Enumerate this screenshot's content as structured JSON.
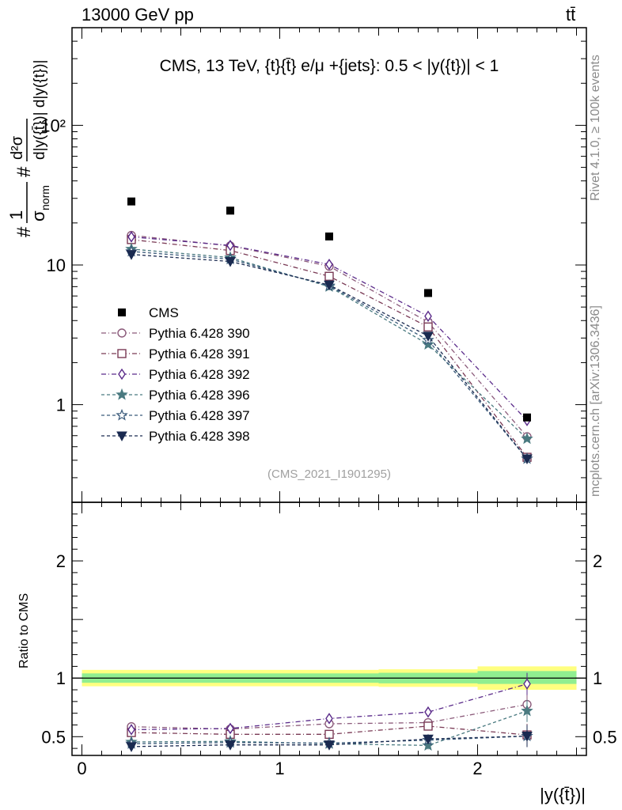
{
  "header": {
    "energy_label": "13000 GeV pp",
    "process_label": "tt̄"
  },
  "side_labels": {
    "rivet": "Rivet 4.1.0, ≥ 100k events",
    "mcplots": "mcplots.cern.ch [arXiv:1306.3436]"
  },
  "main_panel": {
    "title": "CMS, 13 TeV, {t}{t̄} e/μ +{jets}: 0.5 < |y({t})| < 1",
    "ylabel_parts": [
      "#",
      "1",
      "σ",
      "norm",
      "#",
      "d²σ",
      "d|y({t̄})| d|y({t})|"
    ],
    "analysis_tag": "(CMS_2021_I1901295)"
  },
  "ratio_panel": {
    "ylabel": "Ratio to CMS",
    "xlabel": "|y({t̄})|"
  },
  "colors": {
    "data": "#000000",
    "band_inner": "#90ee90",
    "band_outer": "#ffff80",
    "s390": "#8b5a7a",
    "s391": "#7a3a55",
    "s392": "#5a2a8a",
    "s396": "#4a7a80",
    "s397": "#3a5a7a",
    "s398": "#1a2a50"
  },
  "chart_data": {
    "type": "scatter",
    "x": [
      0.25,
      0.75,
      1.25,
      1.75,
      2.25
    ],
    "x_bin_edges": [
      0,
      0.5,
      1.0,
      1.5,
      2.0,
      2.5
    ],
    "xlim": [
      -0.05,
      2.55
    ],
    "main": {
      "yscale": "log",
      "ylim": [
        0.2,
        500
      ],
      "ytick_labels": [
        "1",
        "10",
        "10²"
      ],
      "ytick_values": [
        1,
        10,
        100
      ]
    },
    "ratio": {
      "ylim": [
        0.34,
        2.5
      ],
      "ytick_labels": [
        "0.5",
        "1",
        "2"
      ],
      "ytick_values": [
        0.5,
        1,
        2
      ],
      "xtick_labels": [
        "0",
        "1",
        "2"
      ],
      "xtick_values": [
        0,
        1,
        2
      ],
      "band_inner": [
        [
          0.96,
          1.04
        ],
        [
          0.96,
          1.04
        ],
        [
          0.96,
          1.04
        ],
        [
          0.955,
          1.045
        ],
        [
          0.95,
          1.06
        ]
      ],
      "band_outer": [
        [
          0.93,
          1.07
        ],
        [
          0.93,
          1.07
        ],
        [
          0.93,
          1.07
        ],
        [
          0.925,
          1.075
        ],
        [
          0.9,
          1.1
        ]
      ]
    },
    "data_series": {
      "name": "CMS",
      "values": [
        28.5,
        24.5,
        16.0,
        6.3,
        0.81
      ]
    },
    "series": [
      {
        "name": "Pythia 6.428 390",
        "key": "s390",
        "marker": "circle",
        "dash": "6,3,1,3",
        "values": [
          16.3,
          13.7,
          9.8,
          3.9,
          0.59
        ],
        "ratio": [
          0.585,
          0.565,
          0.61,
          0.62,
          0.775
        ]
      },
      {
        "name": "Pythia 6.428 391",
        "key": "s391",
        "marker": "square",
        "dash": "6,3,1,3",
        "values": [
          15.2,
          12.7,
          8.3,
          3.6,
          0.42
        ],
        "ratio": [
          0.535,
          0.52,
          0.52,
          0.59,
          0.515
        ]
      },
      {
        "name": "Pythia 6.428 392",
        "key": "s392",
        "marker": "diamond",
        "dash": "6,3,1,3",
        "values": [
          15.9,
          13.8,
          10.1,
          4.3,
          0.77
        ],
        "ratio": [
          0.56,
          0.57,
          0.655,
          0.71,
          0.95
        ]
      },
      {
        "name": "Pythia 6.428 396",
        "key": "s396",
        "marker": "star",
        "dash": "4,3",
        "values": [
          13.0,
          11.3,
          7.0,
          2.7,
          0.57
        ],
        "ratio": [
          0.455,
          0.46,
          0.44,
          0.425,
          0.72
        ]
      },
      {
        "name": "Pythia 6.428 397",
        "key": "s397",
        "marker": "star-open",
        "dash": "4,3",
        "values": [
          12.5,
          11.0,
          7.1,
          2.9,
          0.41
        ],
        "ratio": [
          0.44,
          0.45,
          0.445,
          0.47,
          0.505
        ]
      },
      {
        "name": "Pythia 6.428 398",
        "key": "s398",
        "marker": "tri-down",
        "dash": "4,3",
        "values": [
          11.9,
          10.6,
          7.2,
          3.1,
          0.41
        ],
        "ratio": [
          0.415,
          0.43,
          0.43,
          0.48,
          0.505
        ]
      }
    ]
  }
}
